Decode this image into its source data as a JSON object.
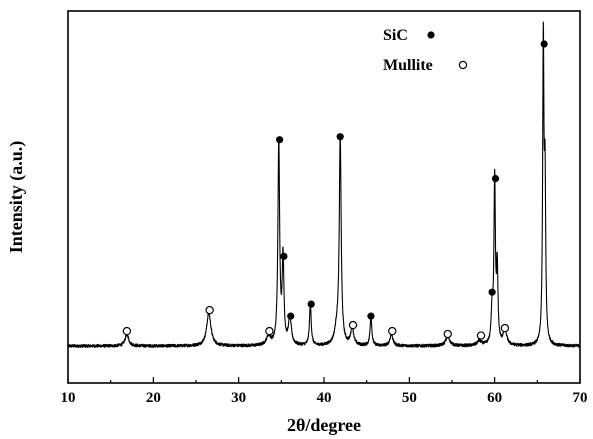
{
  "chart_data": {
    "type": "line",
    "title": "",
    "xlabel": "2θ/degree",
    "ylabel": "Intensity (a.u.)",
    "xlim": [
      10,
      70
    ],
    "ylim": [
      0,
      100
    ],
    "x_ticks": [
      10,
      20,
      30,
      40,
      50,
      60,
      70
    ],
    "x_tick_labels": [
      "10",
      "20",
      "30",
      "40",
      "50",
      "60",
      "70"
    ],
    "y_tick_labels_shown": false,
    "grid": false,
    "legend_position": "top-right",
    "legend": [
      {
        "label": "SiC",
        "marker": "filled-circle"
      },
      {
        "label": "Mullite",
        "marker": "open-circle"
      }
    ],
    "series": [
      {
        "baseline": 2,
        "peaks": [
          {
            "x": 16.9,
            "height": 4,
            "width": 0.25
          },
          {
            "x": 26.5,
            "height": 11,
            "width": 0.3
          },
          {
            "x": 33.5,
            "height": 3,
            "width": 0.3
          },
          {
            "x": 34.7,
            "height": 68,
            "width": 0.12
          },
          {
            "x": 35.2,
            "height": 29,
            "width": 0.12
          },
          {
            "x": 36.0,
            "height": 9,
            "width": 0.2
          },
          {
            "x": 38.4,
            "height": 14,
            "width": 0.12
          },
          {
            "x": 41.5,
            "height": 5,
            "width": 0.3
          },
          {
            "x": 41.9,
            "height": 69,
            "width": 0.13
          },
          {
            "x": 43.3,
            "height": 6,
            "width": 0.2
          },
          {
            "x": 45.5,
            "height": 10,
            "width": 0.12
          },
          {
            "x": 47.9,
            "height": 4,
            "width": 0.2
          },
          {
            "x": 54.5,
            "height": 3,
            "width": 0.3
          },
          {
            "x": 58.2,
            "height": 1.5,
            "width": 0.3
          },
          {
            "x": 59.7,
            "height": 11,
            "width": 0.13
          },
          {
            "x": 60.0,
            "height": 55,
            "width": 0.1
          },
          {
            "x": 60.3,
            "height": 25,
            "width": 0.1
          },
          {
            "x": 61.2,
            "height": 5,
            "width": 0.25
          },
          {
            "x": 65.7,
            "height": 100,
            "width": 0.09
          },
          {
            "x": 65.9,
            "height": 52,
            "width": 0.09
          }
        ]
      }
    ],
    "markers": [
      {
        "phase": "Mullite",
        "x": 16.9,
        "y": 7
      },
      {
        "phase": "Mullite",
        "x": 26.6,
        "y": 14
      },
      {
        "phase": "Mullite",
        "x": 33.6,
        "y": 7
      },
      {
        "phase": "SiC",
        "x": 34.8,
        "y": 71
      },
      {
        "phase": "SiC",
        "x": 35.3,
        "y": 32
      },
      {
        "phase": "SiC",
        "x": 36.1,
        "y": 12
      },
      {
        "phase": "SiC",
        "x": 38.5,
        "y": 16
      },
      {
        "phase": "SiC",
        "x": 41.9,
        "y": 72
      },
      {
        "phase": "Mullite",
        "x": 43.4,
        "y": 9
      },
      {
        "phase": "SiC",
        "x": 45.5,
        "y": 12
      },
      {
        "phase": "Mullite",
        "x": 48.0,
        "y": 7
      },
      {
        "phase": "Mullite",
        "x": 54.5,
        "y": 6
      },
      {
        "phase": "Mullite",
        "x": 58.4,
        "y": 5.5
      },
      {
        "phase": "SiC",
        "x": 59.7,
        "y": 20
      },
      {
        "phase": "SiC",
        "x": 60.1,
        "y": 58
      },
      {
        "phase": "Mullite",
        "x": 61.2,
        "y": 8
      },
      {
        "phase": "SiC",
        "x": 65.8,
        "y": 103
      }
    ]
  }
}
